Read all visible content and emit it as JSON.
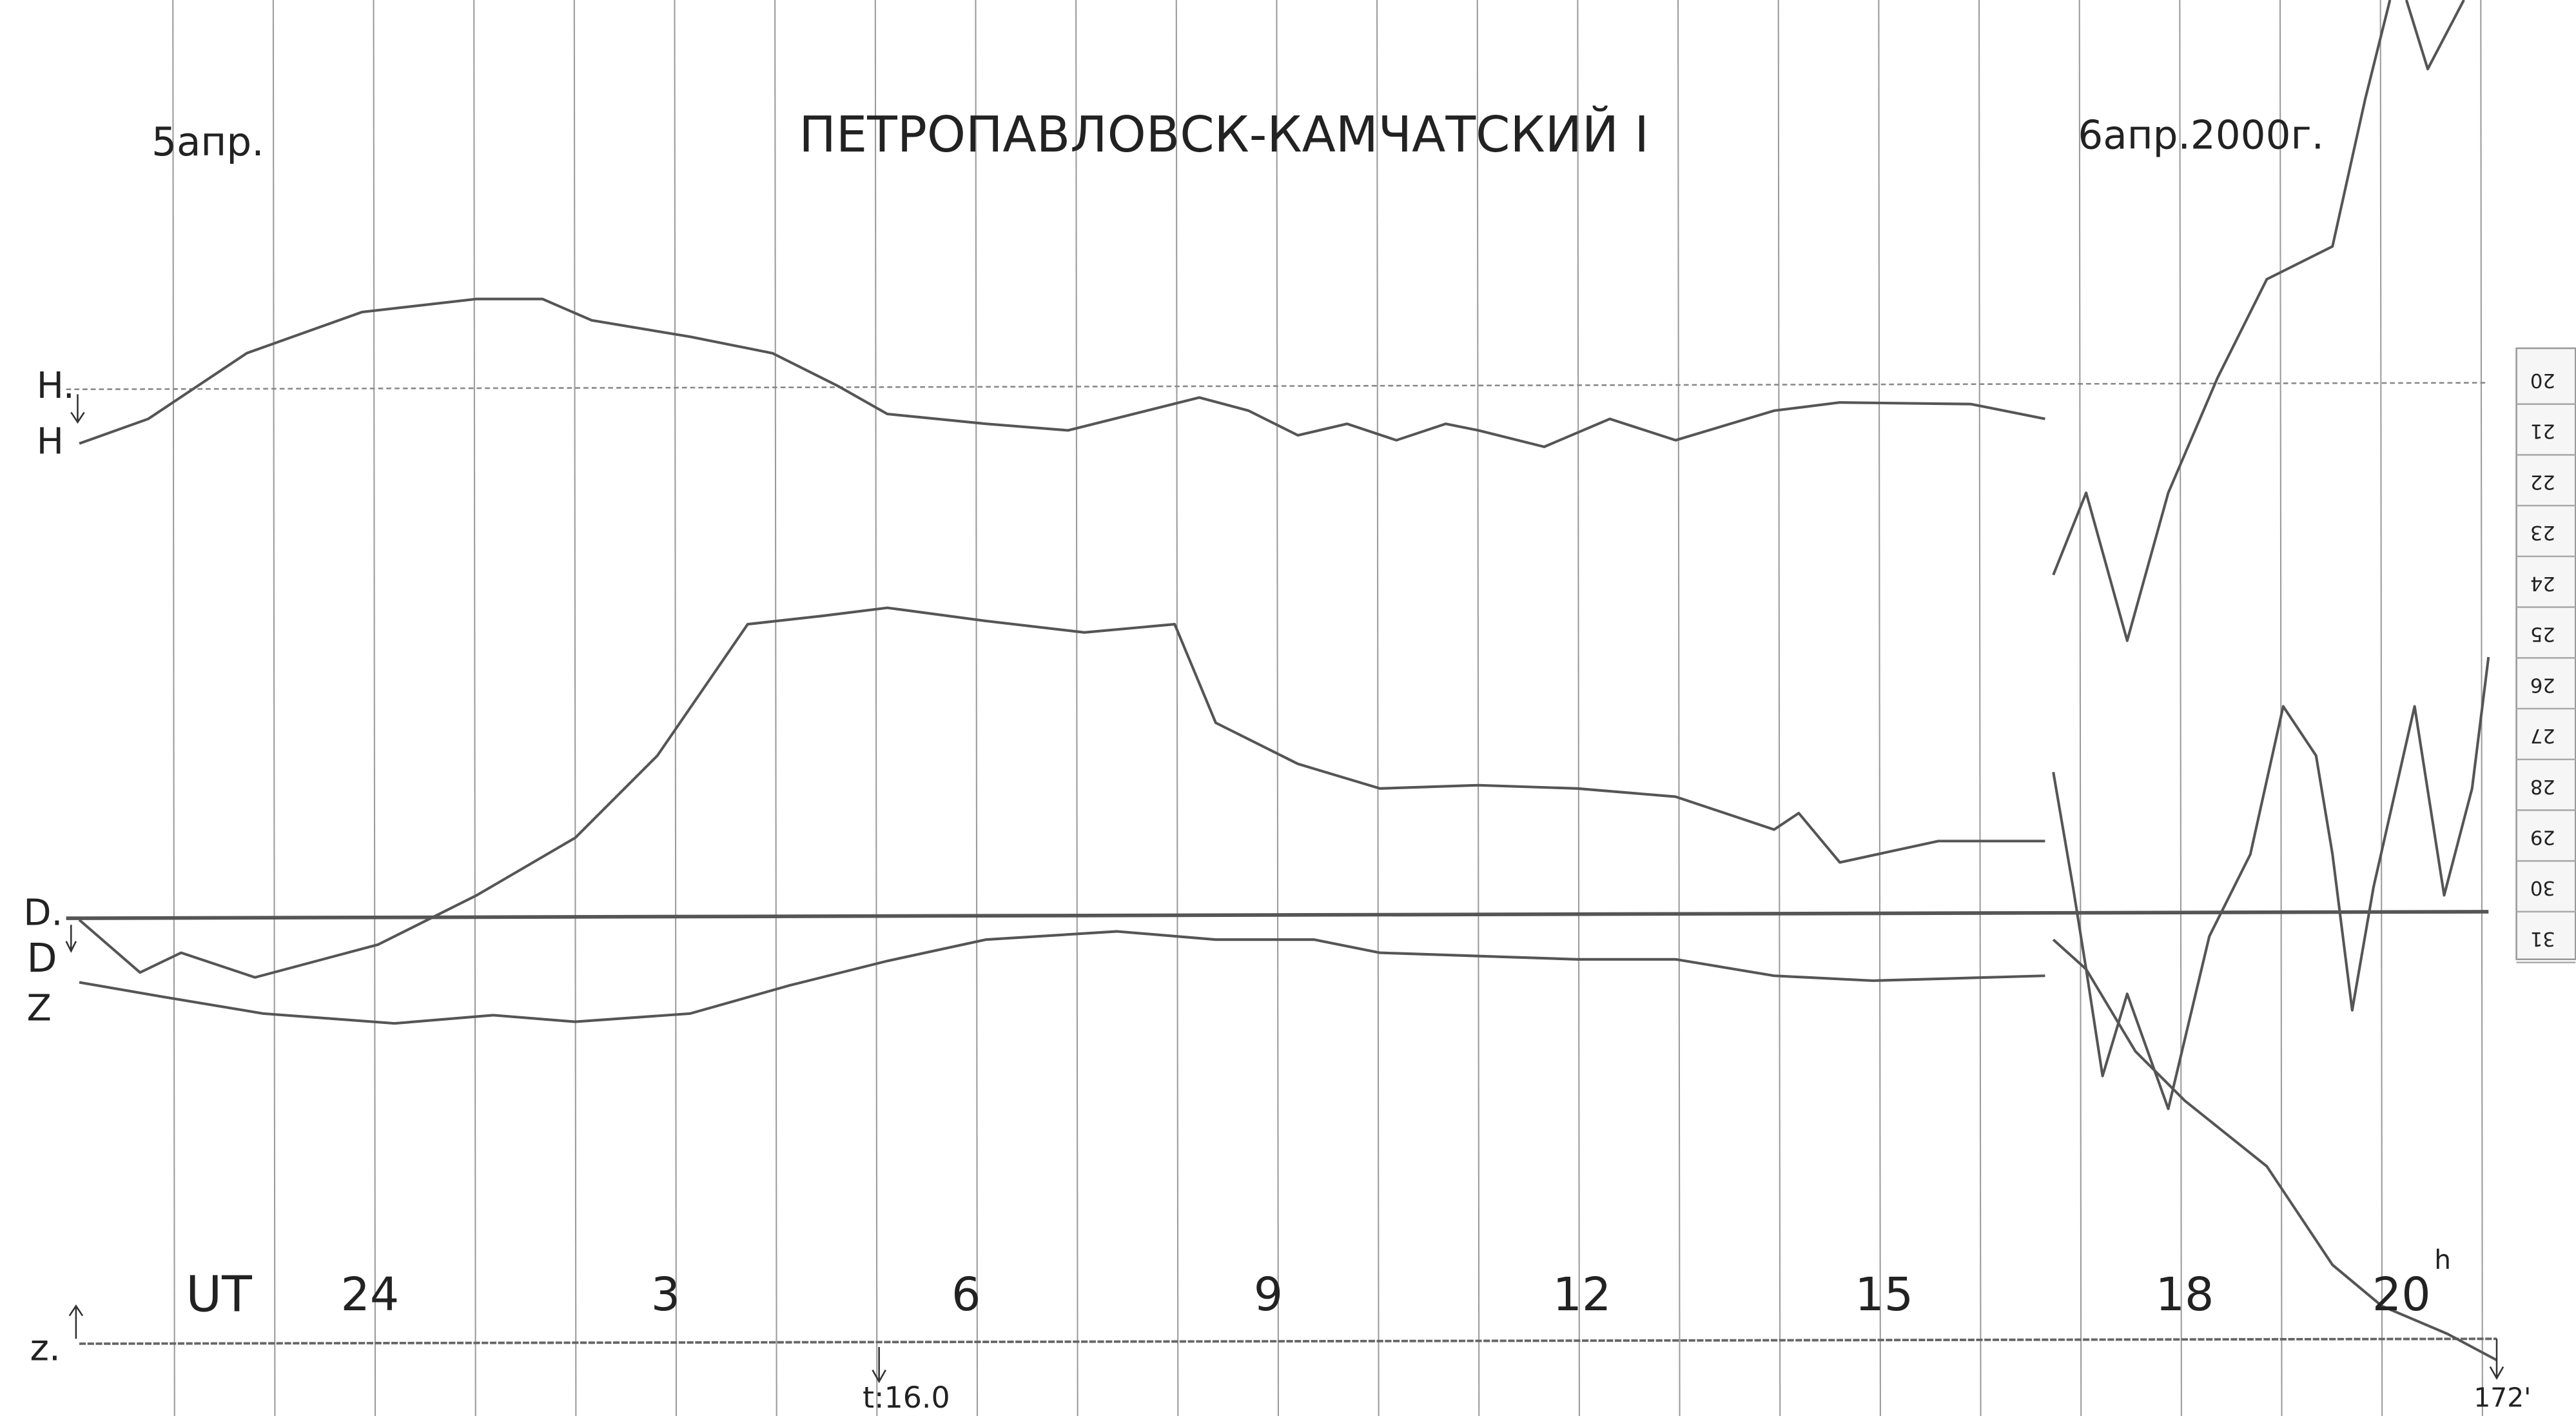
{
  "header": {
    "date_left": "5апр.",
    "title": "ПЕТРОПАВЛОВСК-КАМЧАТСКИЙ I",
    "date_right": "6апр.2000г."
  },
  "trace_labels": {
    "h_base": "H.",
    "h": "H",
    "d_base": "D.",
    "d": "D",
    "z": "Z"
  },
  "time_axis": {
    "label": "UT",
    "hours": [
      "24",
      "3",
      "6",
      "9",
      "12",
      "15",
      "18",
      "20"
    ],
    "hour_unit": "h"
  },
  "baseline": {
    "label": "z.",
    "time_mark": "t:16.0",
    "end_mark": "172'"
  },
  "scale": {
    "labels": [
      "20",
      "21",
      "22",
      "23",
      "24",
      "25",
      "26",
      "27",
      "28",
      "29",
      "30",
      "31"
    ]
  }
}
